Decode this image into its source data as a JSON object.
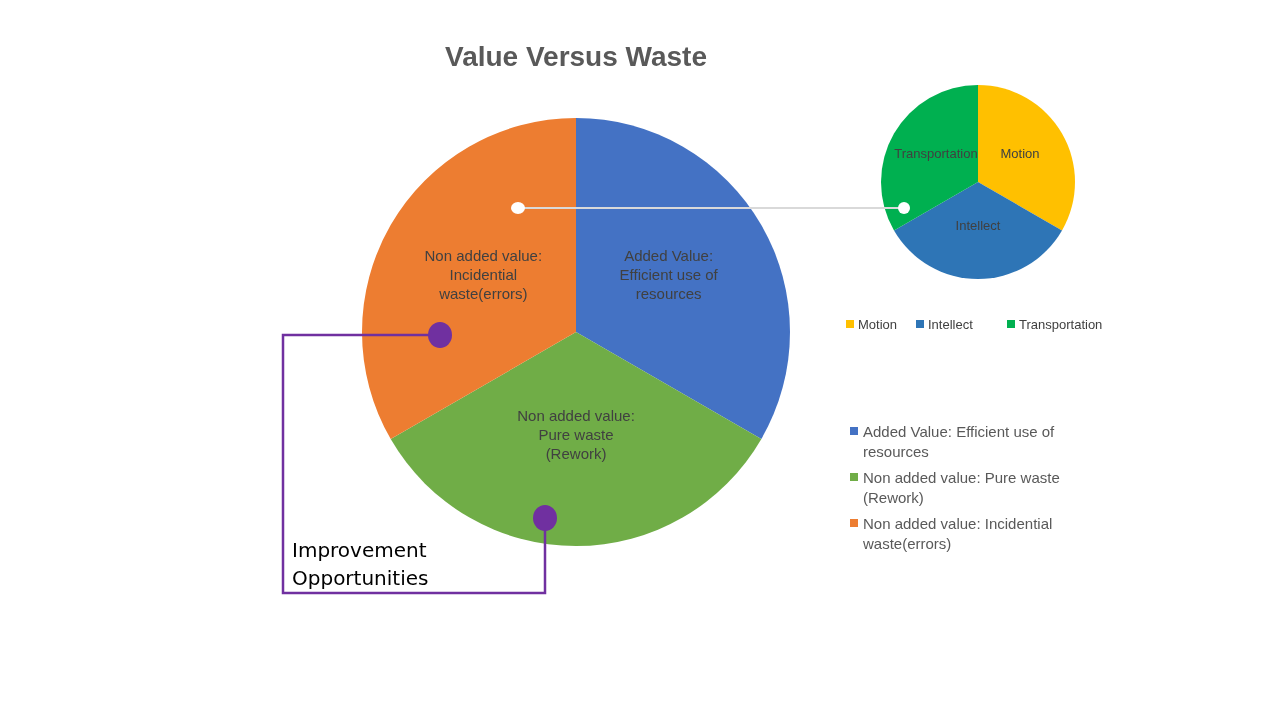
{
  "chart_data": [
    {
      "type": "pie",
      "title": "Value Versus Waste",
      "categories": [
        "Added Value: Efficient use of resources",
        "Non added value: Pure waste (Rework)",
        "Non added value: Incidential waste(errors)"
      ],
      "values": [
        33.33,
        33.33,
        33.34
      ],
      "colors": [
        "#4472c4",
        "#70ad47",
        "#ed7d31"
      ],
      "legend": "right",
      "annotations": [
        "Improvement Opportunities"
      ]
    },
    {
      "type": "pie",
      "categories": [
        "Motion",
        "Intellect",
        "Transportation"
      ],
      "values": [
        33.33,
        33.33,
        33.34
      ],
      "colors": [
        "#ffc000",
        "#2e75b6",
        "#00b050"
      ],
      "legend": "bottom"
    }
  ]
}
